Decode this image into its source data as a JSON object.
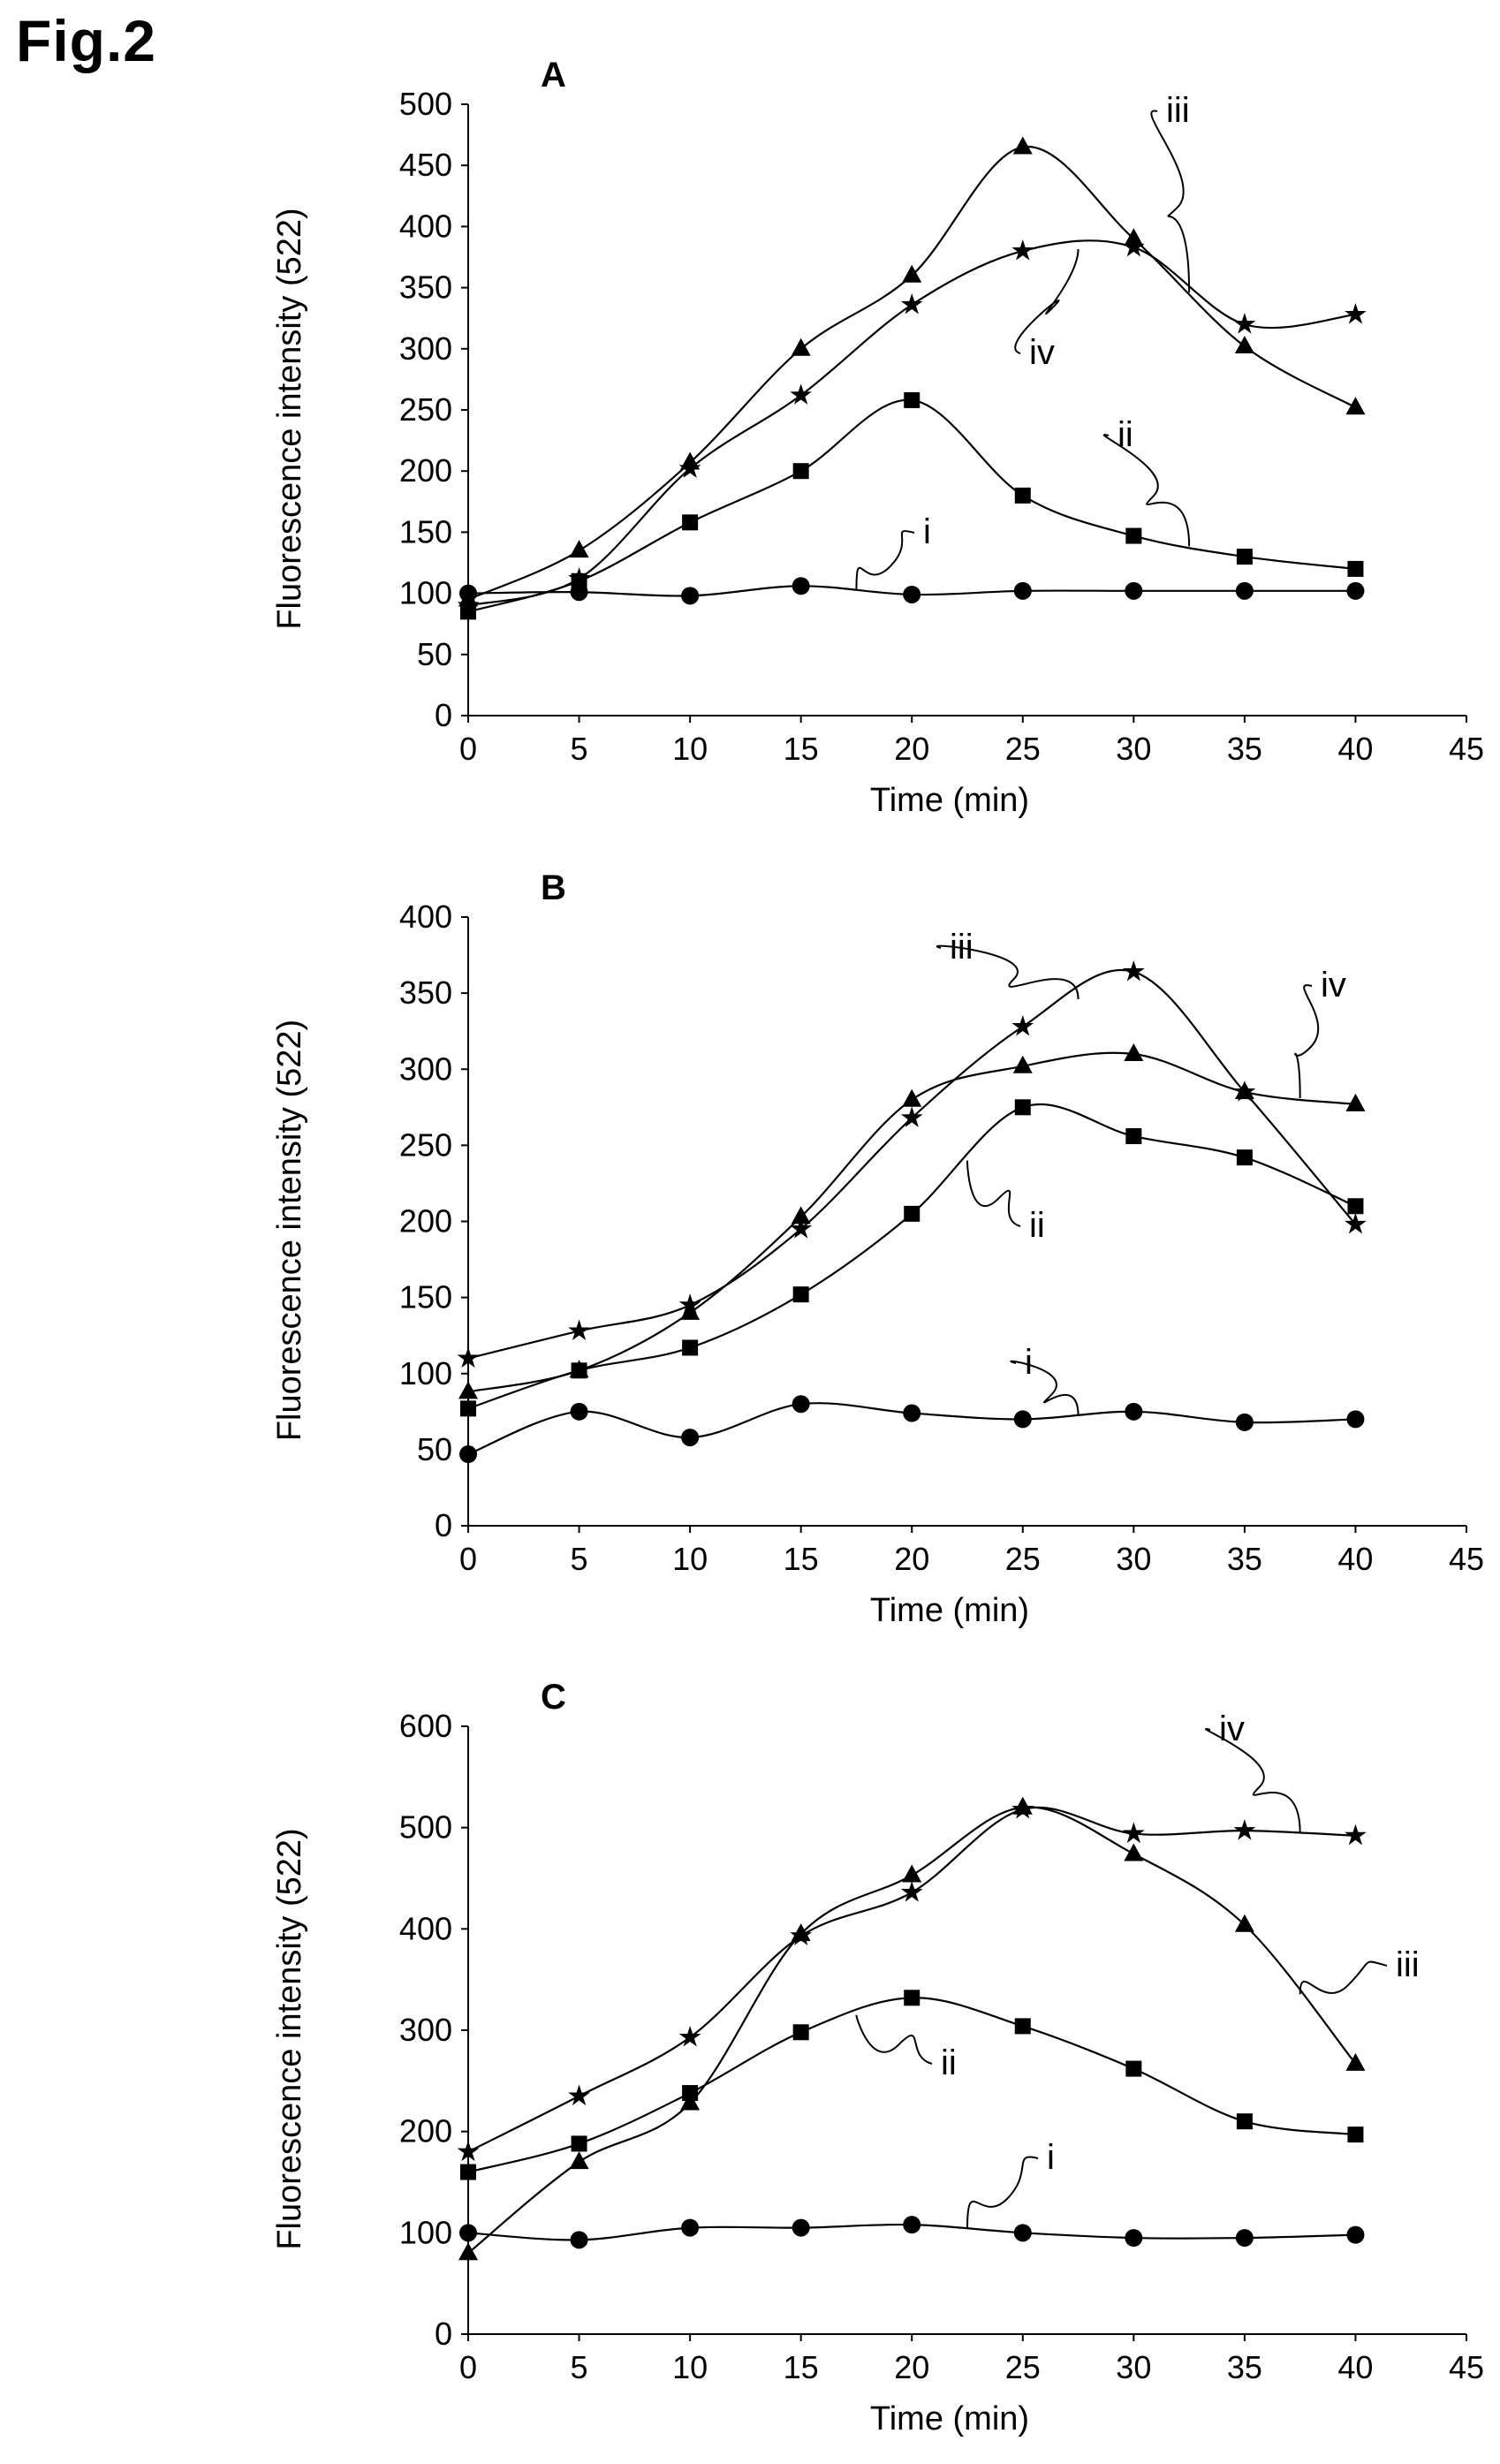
{
  "figure": {
    "label": "Fig.2"
  },
  "chart_data": [
    {
      "type": "line",
      "panel": "A",
      "xlabel": "Time (min)",
      "ylabel": "Fluorescence intensity (522)",
      "xlim": [
        0,
        45
      ],
      "xticks": [
        0,
        5,
        10,
        15,
        20,
        25,
        30,
        35,
        40,
        45
      ],
      "ylim": [
        0,
        500
      ],
      "yticks": [
        0,
        50,
        100,
        150,
        200,
        250,
        300,
        350,
        400,
        450,
        500
      ],
      "grid": false,
      "x": [
        0,
        5,
        10,
        15,
        20,
        25,
        30,
        35,
        40
      ],
      "series": [
        {
          "name": "i",
          "marker": "circle",
          "values": [
            100,
            101,
            98,
            106,
            99,
            102,
            102,
            102,
            102
          ]
        },
        {
          "name": "ii",
          "marker": "square",
          "values": [
            85,
            110,
            158,
            200,
            258,
            180,
            147,
            130,
            120
          ]
        },
        {
          "name": "iii",
          "marker": "triangle",
          "values": [
            95,
            135,
            207,
            300,
            360,
            465,
            390,
            302,
            252
          ]
        },
        {
          "name": "iv",
          "marker": "star",
          "values": [
            90,
            112,
            202,
            262,
            336,
            380,
            383,
            320,
            328
          ]
        }
      ],
      "annotations": [
        {
          "series": "i",
          "text": "i"
        },
        {
          "series": "ii",
          "text": "ii"
        },
        {
          "series": "iii",
          "text": "iii"
        },
        {
          "series": "iv",
          "text": "iv"
        }
      ]
    },
    {
      "type": "line",
      "panel": "B",
      "xlabel": "Time (min)",
      "ylabel": "Fluorescence intensity (522)",
      "xlim": [
        0,
        45
      ],
      "xticks": [
        0,
        5,
        10,
        15,
        20,
        25,
        30,
        35,
        40,
        45
      ],
      "ylim": [
        0,
        400
      ],
      "yticks": [
        0,
        50,
        100,
        150,
        200,
        250,
        300,
        350,
        400
      ],
      "grid": false,
      "x": [
        0,
        5,
        10,
        15,
        20,
        25,
        30,
        35,
        40
      ],
      "series": [
        {
          "name": "i",
          "marker": "circle",
          "values": [
            47,
            75,
            58,
            80,
            74,
            70,
            75,
            68,
            70
          ]
        },
        {
          "name": "ii",
          "marker": "square",
          "values": [
            77,
            102,
            117,
            152,
            205,
            275,
            256,
            242,
            210
          ]
        },
        {
          "name": "iii",
          "marker": "star",
          "values": [
            110,
            128,
            145,
            195,
            268,
            328,
            364,
            285,
            198
          ]
        },
        {
          "name": "iv",
          "marker": "triangle",
          "values": [
            88,
            102,
            140,
            203,
            280,
            302,
            310,
            285,
            277
          ]
        }
      ],
      "annotations": [
        {
          "series": "i",
          "text": "i"
        },
        {
          "series": "ii",
          "text": "ii"
        },
        {
          "series": "iii",
          "text": "iii"
        },
        {
          "series": "iv",
          "text": "iv"
        }
      ]
    },
    {
      "type": "line",
      "panel": "C",
      "xlabel": "Time (min)",
      "ylabel": "Fluorescence intensity (522)",
      "xlim": [
        0,
        45
      ],
      "xticks": [
        0,
        5,
        10,
        15,
        20,
        25,
        30,
        35,
        40,
        45
      ],
      "ylim": [
        0,
        600
      ],
      "yticks": [
        0,
        100,
        200,
        300,
        400,
        500,
        600
      ],
      "grid": false,
      "x": [
        0,
        5,
        10,
        15,
        20,
        25,
        30,
        35,
        40
      ],
      "series": [
        {
          "name": "i",
          "marker": "circle",
          "values": [
            100,
            93,
            105,
            105,
            108,
            100,
            95,
            95,
            98
          ]
        },
        {
          "name": "ii",
          "marker": "square",
          "values": [
            160,
            188,
            238,
            298,
            332,
            304,
            262,
            210,
            197
          ]
        },
        {
          "name": "iii",
          "marker": "triangle",
          "values": [
            80,
            170,
            228,
            395,
            453,
            520,
            474,
            404,
            267
          ]
        },
        {
          "name": "iv",
          "marker": "star",
          "values": [
            180,
            235,
            293,
            393,
            436,
            518,
            494,
            497,
            492
          ]
        }
      ],
      "annotations": [
        {
          "series": "i",
          "text": "i"
        },
        {
          "series": "ii",
          "text": "ii"
        },
        {
          "series": "iii",
          "text": "iii"
        },
        {
          "series": "iv",
          "text": "iv"
        }
      ]
    }
  ]
}
